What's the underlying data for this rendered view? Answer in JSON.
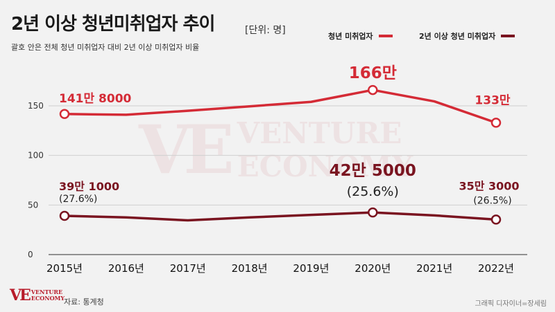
{
  "header": {
    "title": "2년 이상 청년미취업자  추이",
    "unit": "[단위: 명]",
    "subtitle": "괄호 안은 전체 청년 미취업자 대비 2년 이상 미취업자 비율"
  },
  "legend": {
    "items": [
      {
        "label": "청년 미취업자",
        "color": "#d42b36"
      },
      {
        "label": "2년 이상 청년 미취업자",
        "color": "#7a1420"
      }
    ]
  },
  "footer": {
    "source": "자료: 통계청",
    "credit": "그래픽 디자이너=장세림"
  },
  "logo": {
    "mark": "VE",
    "line1": "VENTURE",
    "line2": "ECONOMY"
  },
  "watermark": {
    "mark": "VE",
    "line1": "VENTURE",
    "line2": "ECONOMY"
  },
  "chart_data": {
    "type": "line",
    "categories": [
      "2015년",
      "2016년",
      "2017년",
      "2018년",
      "2019년",
      "2020년",
      "2021년",
      "2022년"
    ],
    "yticks": [
      0,
      50,
      100,
      150
    ],
    "ylim": [
      0,
      175
    ],
    "grid": true,
    "series": [
      {
        "name": "청년 미취업자",
        "color": "#d42b36",
        "values": [
          141.8,
          141,
          145,
          149.5,
          154,
          166,
          154.5,
          133
        ],
        "markers": [
          0,
          5,
          7
        ],
        "labels": [
          {
            "index": 0,
            "text": "141만 8000"
          },
          {
            "index": 5,
            "text": "166만"
          },
          {
            "index": 7,
            "text": "133만"
          }
        ]
      },
      {
        "name": "2년 이상 청년 미취업자",
        "color": "#7a1420",
        "values": [
          39.1,
          37.5,
          34.5,
          37.5,
          40,
          42.5,
          39.5,
          35.3
        ],
        "markers": [
          0,
          5,
          7
        ],
        "labels": [
          {
            "index": 0,
            "text": "39만 1000",
            "sub": "(27.6%)"
          },
          {
            "index": 5,
            "text": "42만 5000",
            "sub": "(25.6%)"
          },
          {
            "index": 7,
            "text": "35만 3000",
            "sub": "(26.5%)"
          }
        ]
      }
    ]
  }
}
